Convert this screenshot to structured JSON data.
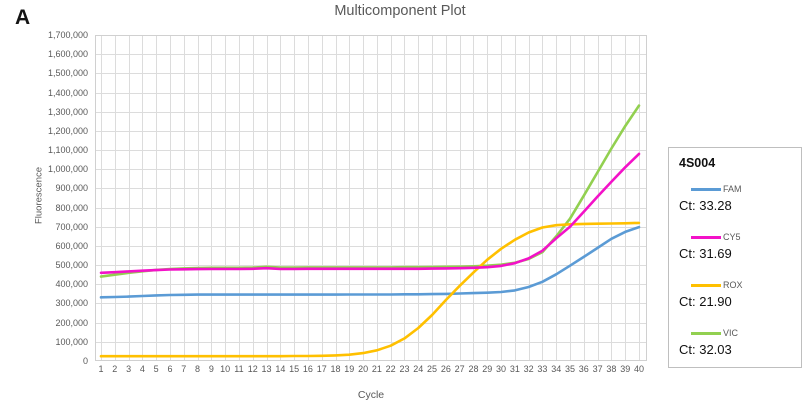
{
  "panel_label": "A",
  "title": "Multicomponent Plot",
  "axes": {
    "x_label": "Cycle",
    "y_label": "Fluorescence",
    "y_min": 0,
    "y_max": 1700000,
    "y_step": 100000,
    "x_ticks": [
      1,
      2,
      3,
      4,
      5,
      6,
      7,
      8,
      9,
      10,
      11,
      12,
      13,
      14,
      15,
      16,
      17,
      18,
      19,
      20,
      21,
      22,
      23,
      24,
      25,
      26,
      27,
      28,
      29,
      30,
      31,
      32,
      33,
      34,
      35,
      36,
      37,
      38,
      39,
      40
    ]
  },
  "legend": {
    "title": "4S004"
  },
  "colors": {
    "grid": "#DCDCDC",
    "plot_border": "#D0D0D0",
    "text_gray": "#595959"
  },
  "chart_data": {
    "type": "line",
    "title": "Multicomponent Plot",
    "xlabel": "Cycle",
    "ylabel": "Fluorescence",
    "xlim": [
      1,
      40
    ],
    "ylim": [
      0,
      1700000
    ],
    "grid": true,
    "legend_position": "right",
    "legend_title": "4S004",
    "x": [
      1,
      2,
      3,
      4,
      5,
      6,
      7,
      8,
      9,
      10,
      11,
      12,
      13,
      14,
      15,
      16,
      17,
      18,
      19,
      20,
      21,
      22,
      23,
      24,
      25,
      26,
      27,
      28,
      29,
      30,
      31,
      32,
      33,
      34,
      35,
      36,
      37,
      38,
      39,
      40
    ],
    "series": [
      {
        "name": "FAM",
        "color": "#5B9BD5",
        "ct": 33.28,
        "ct_label": "Ct: 33.28",
        "values": [
          332000,
          334000,
          336000,
          339000,
          342000,
          344000,
          345000,
          346000,
          346000,
          346000,
          346000,
          346000,
          346000,
          346000,
          346000,
          346000,
          346000,
          346000,
          347000,
          347000,
          347000,
          347000,
          348000,
          348000,
          349000,
          350000,
          352000,
          354000,
          356000,
          360000,
          368000,
          386000,
          413000,
          452000,
          497000,
          543000,
          590000,
          637000,
          673000,
          698000
        ]
      },
      {
        "name": "CY5",
        "color": "#F312C8",
        "ct": 31.69,
        "ct_label": "Ct: 31.69",
        "values": [
          460000,
          463000,
          467000,
          471000,
          474000,
          477000,
          478000,
          479000,
          480000,
          480000,
          480000,
          481000,
          484000,
          480000,
          480000,
          481000,
          481000,
          481000,
          481000,
          481000,
          481000,
          481000,
          481000,
          481000,
          482000,
          483000,
          484000,
          486000,
          489000,
          496000,
          510000,
          535000,
          575000,
          640000,
          700000,
          778000,
          858000,
          935000,
          1010000,
          1080000
        ]
      },
      {
        "name": "ROX",
        "color": "#FFC000",
        "ct": 21.9,
        "ct_label": "Ct: 21.90",
        "values": [
          25000,
          25000,
          25000,
          25000,
          25000,
          25000,
          25000,
          25000,
          25000,
          25000,
          25000,
          25000,
          25000,
          25000,
          26000,
          26000,
          27000,
          29000,
          33000,
          41000,
          56000,
          80000,
          118000,
          172000,
          240000,
          318000,
          392000,
          462000,
          528000,
          585000,
          632000,
          670000,
          696000,
          708000,
          713000,
          715000,
          716000,
          717000,
          718000,
          720000
        ]
      },
      {
        "name": "VIC",
        "color": "#92D050",
        "ct": 32.03,
        "ct_label": "Ct: 32.03",
        "values": [
          440000,
          450000,
          460000,
          468000,
          475000,
          480000,
          483000,
          485000,
          486000,
          486000,
          486000,
          487000,
          491000,
          487000,
          487000,
          488000,
          488000,
          488000,
          488000,
          488000,
          488000,
          488000,
          489000,
          489000,
          490000,
          491000,
          492000,
          494000,
          497000,
          502000,
          512000,
          532000,
          568000,
          650000,
          742000,
          862000,
          985000,
          1108000,
          1225000,
          1332000
        ]
      }
    ]
  }
}
